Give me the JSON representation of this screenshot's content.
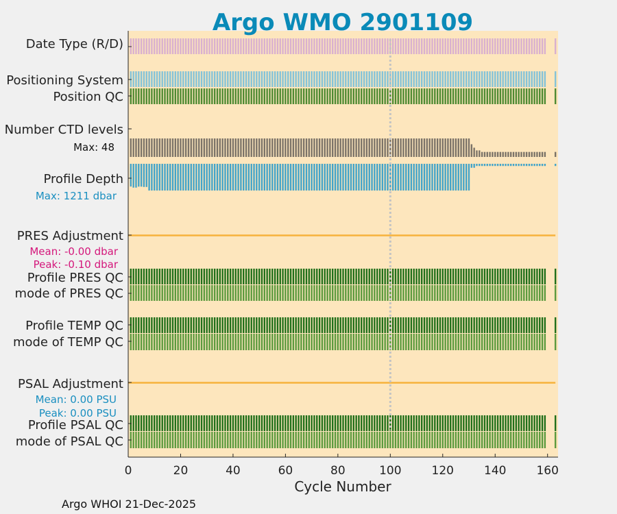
{
  "chart_data": {
    "type": "bar",
    "title": "Argo WMO 2901109",
    "xlabel": "Cycle Number",
    "xlim": [
      0,
      164
    ],
    "xticks": [
      0,
      20,
      40,
      60,
      80,
      100,
      120,
      140,
      160
    ],
    "reference_line_cycle": 100,
    "cycles_min": 1,
    "cycles_max": 163,
    "missing_cycles": [
      160,
      161,
      162
    ],
    "rows": {
      "date_type": "Date Type (R/D)",
      "positioning_system": "Positioning System",
      "position_qc": "Position QC",
      "ctd_levels": "Number CTD levels",
      "profile_depth": "Profile Depth",
      "pres_adjustment": "PRES Adjustment",
      "profile_pres_qc": "Profile PRES QC",
      "mode_pres_qc": "mode of PRES QC",
      "profile_temp_qc": "Profile TEMP QC",
      "mode_temp_qc": "mode of TEMP QC",
      "psal_adjustment": "PSAL Adjustment",
      "profile_psal_qc": "Profile PSAL QC",
      "mode_psal_qc": "mode of PSAL QC"
    },
    "annotations": {
      "ctd_max": "Max: 48",
      "depth_max": "Max: 1211 dbar",
      "pres_mean": "Mean: -0.00 dbar",
      "pres_peak": "Peak: -0.10 dbar",
      "psal_mean": "Mean: 0.00 PSU",
      "psal_peak": "Peak: 0.00 PSU"
    },
    "ctd_levels_max": 48,
    "ctd_levels_series": [
      {
        "from": 1,
        "to": 130,
        "value": 48
      },
      {
        "from": 131,
        "to": 131,
        "value": 33
      },
      {
        "from": 132,
        "to": 132,
        "value": 24
      },
      {
        "from": 133,
        "to": 134,
        "value": 17
      },
      {
        "from": 135,
        "to": 163,
        "value": 13
      }
    ],
    "profile_depth_max_dbar": 1211,
    "profile_depth_series": [
      {
        "from": 1,
        "to": 1,
        "value": 1030
      },
      {
        "from": 2,
        "to": 3,
        "value": 1080
      },
      {
        "from": 4,
        "to": 5,
        "value": 1035
      },
      {
        "from": 6,
        "to": 7,
        "value": 1050
      },
      {
        "from": 8,
        "to": 130,
        "value": 1211
      },
      {
        "from": 131,
        "to": 132,
        "value": 180
      },
      {
        "from": 133,
        "to": 163,
        "value": 100
      }
    ],
    "pres_adjustment_mean_dbar": -0.0,
    "pres_adjustment_peak_dbar": -0.1,
    "psal_adjustment_mean_psu": 0.0,
    "psal_adjustment_peak_psu": 0.0,
    "colors": {
      "plot_bg": "#fde6bd",
      "figure_bg": "#f0f0f0",
      "date_type": "#d9b0cf",
      "positioning_system": "#84c3d8",
      "position_qc": "#4e8a32",
      "ctd_levels": "#7b7368",
      "profile_depth": "#43a4c9",
      "adjustment_line": "#f7b23c",
      "qc_dark": "#1f6f19",
      "qc_light": "#5b9a3e",
      "ref_line": "#c4c4c4",
      "annot_pink": "#d4177b",
      "annot_blue": "#1a8fc0"
    }
  },
  "footer": "Argo WHOI 21-Dec-2025"
}
